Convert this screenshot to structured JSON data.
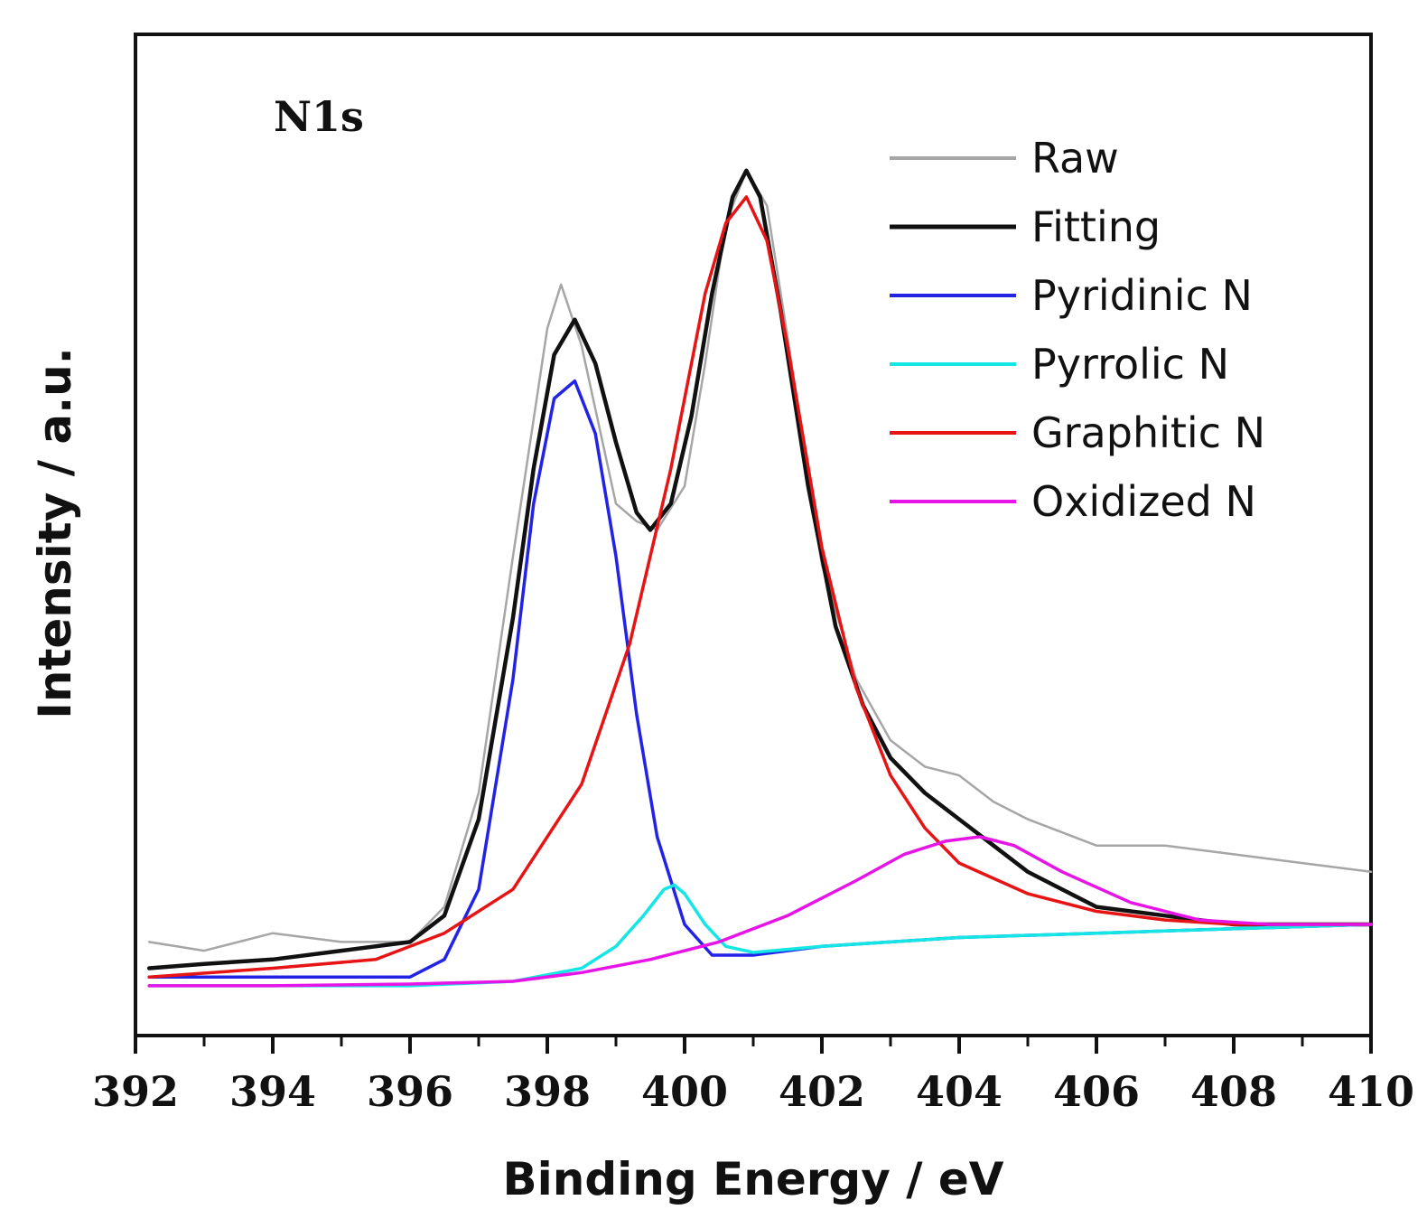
{
  "chart_data": {
    "type": "line",
    "panel_label": "N1s",
    "xlabel": "Binding Energy / eV",
    "ylabel": "Intensity / a.u.",
    "xlim": [
      392,
      410
    ],
    "ylim": [
      0,
      1
    ],
    "x_ticks": [
      "392",
      "394",
      "396",
      "398",
      "400",
      "402",
      "404",
      "406",
      "408",
      "410"
    ],
    "grid": false,
    "legend_position": "top-right",
    "series": [
      {
        "name": "Raw",
        "color": "#a6a6a6",
        "x": [
          392.2,
          393.0,
          394.0,
          395.0,
          396.0,
          396.5,
          397.0,
          397.5,
          398.0,
          398.2,
          398.5,
          399.0,
          399.3,
          399.6,
          400.0,
          400.3,
          400.6,
          400.9,
          401.2,
          401.5,
          402.0,
          402.5,
          403.0,
          403.5,
          404.0,
          404.5,
          405.0,
          406.0,
          407.0,
          408.0,
          409.0,
          410.0
        ],
        "y": [
          0.08,
          0.07,
          0.09,
          0.08,
          0.08,
          0.12,
          0.25,
          0.52,
          0.78,
          0.83,
          0.76,
          0.58,
          0.56,
          0.55,
          0.6,
          0.74,
          0.9,
          0.96,
          0.92,
          0.77,
          0.51,
          0.38,
          0.31,
          0.28,
          0.27,
          0.24,
          0.22,
          0.19,
          0.19,
          0.18,
          0.17,
          0.16
        ]
      },
      {
        "name": "Fitting",
        "color": "#111111",
        "x": [
          392.2,
          393.0,
          394.0,
          395.0,
          396.0,
          396.5,
          397.0,
          397.5,
          397.8,
          398.1,
          398.4,
          398.7,
          399.0,
          399.3,
          399.5,
          399.8,
          400.1,
          400.4,
          400.7,
          400.9,
          401.1,
          401.4,
          401.8,
          402.2,
          402.6,
          403.0,
          403.5,
          404.0,
          404.5,
          405.0,
          405.5,
          406.0,
          407.0,
          408.0,
          409.0,
          410.0
        ],
        "y": [
          0.05,
          0.055,
          0.06,
          0.07,
          0.08,
          0.11,
          0.22,
          0.45,
          0.62,
          0.75,
          0.79,
          0.74,
          0.65,
          0.57,
          0.55,
          0.58,
          0.68,
          0.82,
          0.93,
          0.96,
          0.93,
          0.8,
          0.6,
          0.44,
          0.35,
          0.29,
          0.25,
          0.22,
          0.19,
          0.16,
          0.14,
          0.12,
          0.11,
          0.1,
          0.1,
          0.1
        ]
      },
      {
        "name": "Pyridinic N",
        "color": "#2323e6",
        "x": [
          392.2,
          394.0,
          396.0,
          396.5,
          397.0,
          397.5,
          397.8,
          398.1,
          398.4,
          398.7,
          399.0,
          399.3,
          399.6,
          400.0,
          400.4,
          401.0,
          402.0,
          404.0,
          406.0,
          408.0,
          410.0
        ],
        "y": [
          0.04,
          0.04,
          0.04,
          0.06,
          0.14,
          0.38,
          0.58,
          0.7,
          0.72,
          0.66,
          0.52,
          0.34,
          0.2,
          0.1,
          0.065,
          0.065,
          0.075,
          0.085,
          0.09,
          0.095,
          0.1
        ]
      },
      {
        "name": "Pyrrolic N",
        "color": "#14e6e6",
        "x": [
          392.2,
          394.0,
          396.0,
          397.5,
          398.5,
          399.0,
          399.4,
          399.7,
          399.85,
          400.0,
          400.3,
          400.6,
          401.0,
          402.0,
          404.0,
          406.0,
          408.0,
          410.0
        ],
        "y": [
          0.03,
          0.03,
          0.03,
          0.035,
          0.05,
          0.075,
          0.11,
          0.14,
          0.145,
          0.135,
          0.1,
          0.075,
          0.068,
          0.075,
          0.085,
          0.09,
          0.095,
          0.1
        ]
      },
      {
        "name": "Graphitic N",
        "color": "#e61414",
        "x": [
          392.2,
          394.0,
          395.5,
          396.5,
          397.5,
          398.5,
          399.2,
          399.8,
          400.3,
          400.6,
          400.9,
          401.2,
          401.5,
          402.0,
          402.5,
          403.0,
          403.5,
          404.0,
          405.0,
          406.0,
          407.0,
          408.0,
          409.0,
          410.0
        ],
        "y": [
          0.04,
          0.05,
          0.06,
          0.09,
          0.14,
          0.26,
          0.42,
          0.62,
          0.82,
          0.9,
          0.93,
          0.88,
          0.76,
          0.53,
          0.37,
          0.27,
          0.21,
          0.17,
          0.135,
          0.115,
          0.105,
          0.1,
          0.1,
          0.1
        ]
      },
      {
        "name": "Oxidized N",
        "color": "#e614e6",
        "x": [
          392.2,
          394.0,
          396.0,
          397.5,
          398.5,
          399.5,
          400.5,
          401.5,
          402.5,
          403.2,
          403.8,
          404.3,
          404.8,
          405.5,
          406.5,
          407.5,
          408.5,
          410.0
        ],
        "y": [
          0.03,
          0.03,
          0.032,
          0.035,
          0.045,
          0.06,
          0.08,
          0.11,
          0.15,
          0.18,
          0.195,
          0.2,
          0.19,
          0.16,
          0.125,
          0.105,
          0.1,
          0.1
        ]
      }
    ]
  }
}
